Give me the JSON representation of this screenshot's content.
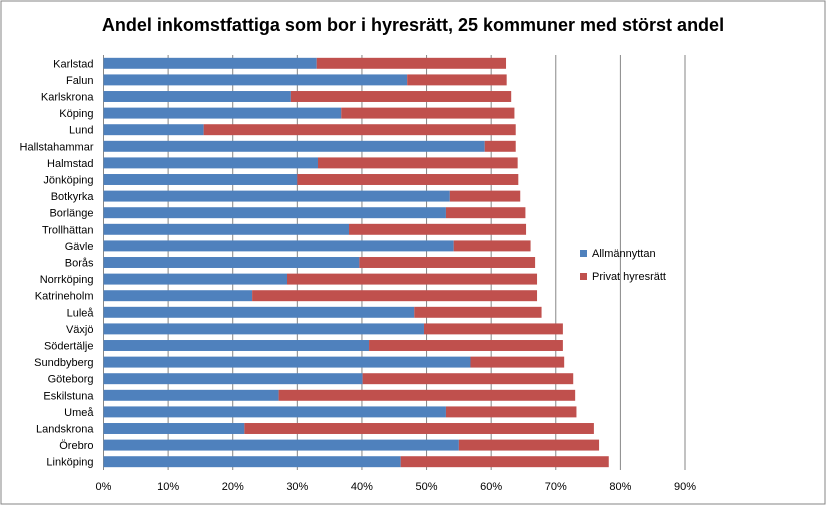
{
  "chart_data": {
    "type": "bar",
    "orientation": "horizontal",
    "stacked": true,
    "title": "Andel inkomstfattiga som bor i hyresrätt, 25 kommuner med störst andel",
    "categories": [
      "Karlstad",
      "Falun",
      "Karlskrona",
      "Köping",
      "Lund",
      "Hallstahammar",
      "Halmstad",
      "Jönköping",
      "Botkyrka",
      "Borlänge",
      "Trollhättan",
      "Gävle",
      "Borås",
      "Norrköping",
      "Katrineholm",
      "Luleå",
      "Växjö",
      "Södertälje",
      "Sundbyberg",
      "Göteborg",
      "Eskilstuna",
      "Umeå",
      "Landskrona",
      "Örebro",
      "Linköping"
    ],
    "series": [
      {
        "name": "Allmännyttan",
        "color": "#4F81BD",
        "values": [
          33.0,
          47.0,
          29.0,
          36.8,
          15.5,
          59.0,
          33.2,
          30.0,
          53.6,
          53.0,
          38.0,
          54.2,
          39.6,
          28.4,
          23.0,
          48.1,
          49.6,
          41.1,
          56.8,
          40.1,
          27.1,
          53.0,
          21.8,
          55.0,
          46.0
        ]
      },
      {
        "name": "Privat hyresrätt",
        "color": "#C0504D",
        "values": [
          29.3,
          15.4,
          34.1,
          26.8,
          48.3,
          4.8,
          30.9,
          34.2,
          10.9,
          12.3,
          27.4,
          11.9,
          27.2,
          38.7,
          44.1,
          19.7,
          21.5,
          30.0,
          14.5,
          32.6,
          45.9,
          20.2,
          54.1,
          21.7,
          32.2
        ]
      }
    ],
    "x_ticks": [
      "0%",
      "10%",
      "20%",
      "30%",
      "40%",
      "50%",
      "60%",
      "70%",
      "80%",
      "90%"
    ],
    "xlim": [
      0,
      90
    ],
    "grid": true,
    "legend": "right"
  }
}
